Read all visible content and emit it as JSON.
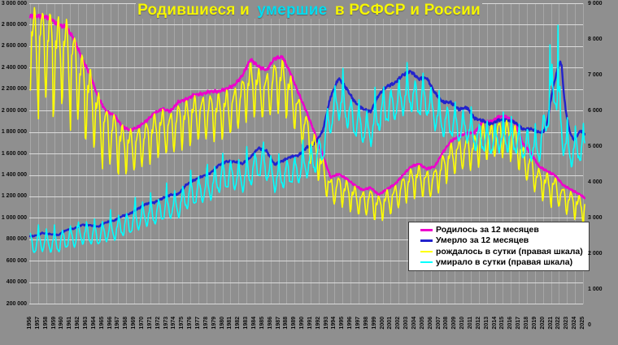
{
  "chart_data": {
    "type": "line",
    "title": {
      "parts": [
        {
          "text": "Родившиеся и ",
          "color": "#f6f600"
        },
        {
          "text": "умершие",
          "color": "#00dcf0"
        },
        {
          "text": " в РСФСР и России",
          "color": "#f6f600"
        }
      ]
    },
    "style": {
      "background": "#8f8f8f",
      "h_grid": "#dcdcdc",
      "v_grid": "rgba(255,255,255,0.22)"
    },
    "x_axis": {
      "years": [
        1956,
        1957,
        1958,
        1959,
        1960,
        1961,
        1962,
        1963,
        1964,
        1965,
        1966,
        1967,
        1968,
        1969,
        1970,
        1971,
        1972,
        1973,
        1974,
        1975,
        1976,
        1977,
        1978,
        1979,
        1980,
        1981,
        1982,
        1983,
        1984,
        1985,
        1986,
        1987,
        1988,
        1989,
        1990,
        1991,
        1992,
        1993,
        1994,
        1995,
        1996,
        1997,
        1998,
        1999,
        2000,
        2001,
        2002,
        2003,
        2004,
        2005,
        2006,
        2007,
        2008,
        2009,
        2010,
        2011,
        2012,
        2013,
        2014,
        2015,
        2016,
        2017,
        2018,
        2019,
        2020,
        2021,
        2022,
        2023,
        2024,
        2025
      ]
    },
    "y_left_axis": {
      "max": 3000000,
      "tick_step": 200000,
      "tick_labels_top_to_bottom": [
        "3 000 000",
        "2 800 000",
        "2 600 000",
        "2 400 000",
        "2 200 000",
        "2 000 000",
        "1 800 000",
        "1 600 000",
        "1 400 000",
        "1 200 000",
        "1 000 000",
        "800 000",
        "600 000",
        "400 000",
        "200 000"
      ]
    },
    "y_right_axis": {
      "max": 9000,
      "tick_step": 1000,
      "tick_labels_top_to_bottom": [
        "9 000",
        "8 000",
        "7 000",
        "6 000",
        "5 000",
        "4 000",
        "3 000",
        "2 000",
        "1 000",
        "0"
      ]
    },
    "series": [
      {
        "name": "Родилось за 12 месяцев",
        "color": "#ee00cc",
        "axis": "left",
        "width": 2.4,
        "kind": "rolling12",
        "unit": "persons_per_year_thousands",
        "annual_start_year": 1956,
        "annual": [
          2880,
          2880,
          2860,
          2796,
          2782,
          2662,
          2482,
          2332,
          2122,
          1990,
          1958,
          1851,
          1817,
          1848,
          1904,
          1975,
          2015,
          1994,
          2080,
          2106,
          2147,
          2156,
          2179,
          2178,
          2203,
          2237,
          2328,
          2478,
          2410,
          2375,
          2486,
          2500,
          2348,
          2161,
          1989,
          1795,
          1588,
          1379,
          1408,
          1364,
          1305,
          1260,
          1283,
          1215,
          1267,
          1312,
          1397,
          1477,
          1503,
          1457,
          1480,
          1610,
          1714,
          1762,
          1789,
          1797,
          1902,
          1896,
          1943,
          1941,
          1889,
          1690,
          1604,
          1481,
          1436,
          1398,
          1306,
          1264,
          1222,
          1190
        ],
        "override_from": 2025,
        "extra_points": [
          [
            2025.25,
            1185
          ]
        ]
      },
      {
        "name": "Умерло за 12 месяцев",
        "color": "#2222cc",
        "axis": "left",
        "width": 2.4,
        "kind": "rolling12",
        "unit": "persons_per_year_thousands",
        "annual_start_year": 1956,
        "annual": [
          831,
          859,
          849,
          839,
          886,
          901,
          936,
          932,
          918,
          959,
          975,
          1017,
          1040,
          1087,
          1131,
          1143,
          1182,
          1214,
          1222,
          1310,
          1353,
          1388,
          1417,
          1490,
          1526,
          1524,
          1504,
          1564,
          1651,
          1625,
          1498,
          1531,
          1569,
          1583,
          1656,
          1690,
          1807,
          2129,
          2301,
          2204,
          2082,
          2016,
          1989,
          2144,
          2225,
          2255,
          2332,
          2366,
          2295,
          2304,
          2167,
          2080,
          2076,
          2011,
          2029,
          1926,
          1906,
          1872,
          1913,
          1909,
          1891,
          1826,
          1829,
          1798,
          2139,
          2446,
          1905,
          1760,
          1820,
          1780
        ],
        "override_from": 2020,
        "extra_points": [
          [
            2020.0,
            1800
          ],
          [
            2020.4,
            1850
          ],
          [
            2020.75,
            1980
          ],
          [
            2021.0,
            2110
          ],
          [
            2021.3,
            2230
          ],
          [
            2021.6,
            2320
          ],
          [
            2021.9,
            2405
          ],
          [
            2022.15,
            2445
          ],
          [
            2022.35,
            2420
          ],
          [
            2022.6,
            2150
          ],
          [
            2022.9,
            1975
          ],
          [
            2023.2,
            1850
          ],
          [
            2023.5,
            1770
          ],
          [
            2023.9,
            1728
          ],
          [
            2024.3,
            1770
          ],
          [
            2024.7,
            1815
          ],
          [
            2025.0,
            1790
          ],
          [
            2025.25,
            1782
          ]
        ]
      },
      {
        "name": "рождалось в сутки (правая шкала)",
        "color": "#ffff00",
        "axis": "right",
        "width": 1.6,
        "kind": "daily",
        "unit": "persons_per_day",
        "base_series": 0,
        "seasonal_pattern": [
          -0.1,
          -0.04,
          0.02,
          0.01,
          0.045,
          0.065,
          0.08,
          0.06,
          0.03,
          -0.02,
          -0.075,
          -0.13
        ],
        "amplitude_points": [
          [
            1956,
            1.5
          ],
          [
            1964,
            1.45
          ],
          [
            1970,
            1.1
          ],
          [
            1980,
            1.0
          ],
          [
            1990,
            0.95
          ],
          [
            2000,
            1.0
          ],
          [
            2010,
            0.9
          ],
          [
            2025,
            0.95
          ]
        ],
        "spikes": [
          [
            1957.04,
            -0.12
          ],
          [
            1958.88,
            -0.14
          ],
          [
            1961.04,
            -0.12
          ],
          [
            1962.88,
            -0.1
          ],
          [
            1965.04,
            -0.08
          ],
          [
            1967.04,
            -0.06
          ],
          [
            1999.04,
            -0.04
          ],
          [
            2021.04,
            -0.04
          ],
          [
            2025.04,
            -0.05
          ]
        ]
      },
      {
        "name": "умирало в сутки (правая шкала)",
        "color": "#00ffff",
        "axis": "right",
        "width": 1.6,
        "kind": "daily",
        "unit": "persons_per_day",
        "base_series": 1,
        "seasonal_pattern": [
          0.09,
          0.05,
          0.03,
          -0.01,
          -0.04,
          -0.06,
          -0.07,
          -0.07,
          -0.05,
          -0.01,
          0.02,
          0.05
        ],
        "amplitude_points": [
          [
            1956,
            1.6
          ],
          [
            1970,
            1.35
          ],
          [
            1985,
            1.15
          ],
          [
            2000,
            0.95
          ],
          [
            2015,
            0.9
          ],
          [
            2025,
            1.05
          ]
        ],
        "spikes": [
          [
            1957.04,
            0.07
          ],
          [
            1959.04,
            0.08
          ],
          [
            1961.88,
            0.1
          ],
          [
            1964.04,
            0.06
          ],
          [
            1966.04,
            0.08
          ],
          [
            1969.12,
            0.17
          ],
          [
            1971.04,
            0.07
          ],
          [
            1973.04,
            0.1
          ],
          [
            1976.04,
            0.09
          ],
          [
            1978.12,
            0.11
          ],
          [
            1980.04,
            0.07
          ],
          [
            1983.04,
            0.08
          ],
          [
            1985.12,
            0.1
          ],
          [
            1987.04,
            0.05
          ],
          [
            1990.04,
            0.06
          ],
          [
            1993.12,
            0.06
          ],
          [
            1995.04,
            0.07
          ],
          [
            1997.04,
            0.05
          ],
          [
            1999.04,
            0.08
          ],
          [
            2000.12,
            0.05
          ],
          [
            2003.04,
            0.05
          ],
          [
            2005.04,
            0.05
          ],
          [
            2007.04,
            0.04
          ],
          [
            2009.04,
            0.05
          ],
          [
            2011.04,
            0.04
          ],
          [
            2013.04,
            0.04
          ],
          [
            2015.04,
            0.05
          ],
          [
            2016.04,
            0.05
          ],
          [
            2017.04,
            0.04
          ],
          [
            2018.12,
            0.05
          ],
          [
            2019.04,
            0.04
          ],
          [
            2020.875,
            0.24
          ],
          [
            2021.12,
            0.1
          ],
          [
            2021.875,
            0.35
          ],
          [
            2022.12,
            0.12
          ],
          [
            2023.04,
            0.06
          ],
          [
            2024.04,
            0.05
          ],
          [
            2025.04,
            0.07
          ]
        ]
      }
    ]
  }
}
